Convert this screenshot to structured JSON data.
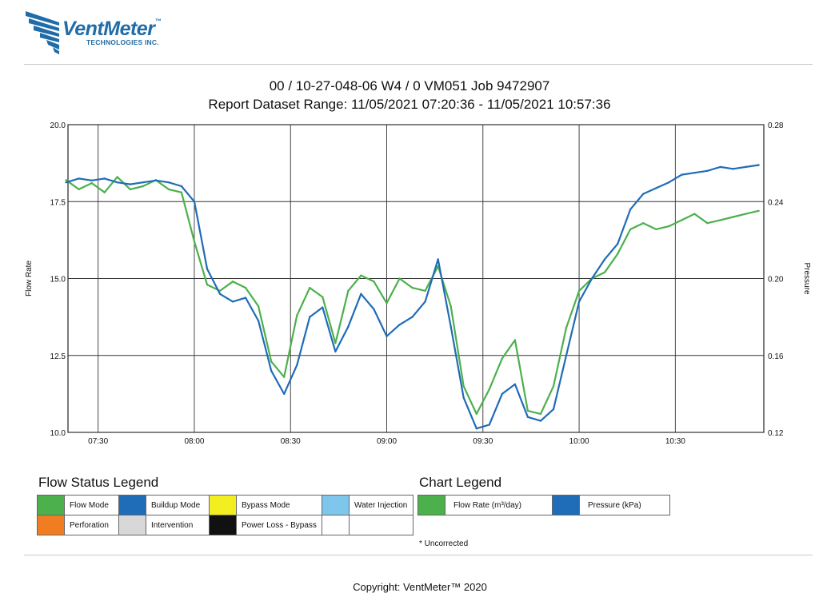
{
  "header": {
    "brand": "VentMeter",
    "brand_tm": "™",
    "brand_sub": "TECHNOLOGIES INC.",
    "title_line1": "00 / 10-27-048-06 W4 / 0 VM051 Job 9472907",
    "title_line2": "Report Dataset Range: 11/05/2021 07:20:36 - 11/05/2021 10:57:36"
  },
  "chart_data": {
    "type": "line",
    "ylabel": "Flow Rate",
    "y2label": "Pressure",
    "ylim": [
      10.0,
      20.0
    ],
    "y2lim": [
      0.12,
      0.28
    ],
    "yticks": [
      "10.0",
      "12.5",
      "15.0",
      "17.5",
      "20.0"
    ],
    "y2ticks": [
      "0.12",
      "0.16",
      "0.20",
      "0.24",
      "0.28"
    ],
    "xticks": [
      "07:30",
      "08:00",
      "08:30",
      "09:00",
      "09:30",
      "10:00",
      "10:30"
    ],
    "xrange": [
      "07:20:36",
      "10:57:36"
    ],
    "grid": true,
    "series": [
      {
        "name": "Flow Rate (m³/day)",
        "axis": "left",
        "color": "#4cb04c",
        "x": [
          "07:20",
          "07:24",
          "07:28",
          "07:32",
          "07:36",
          "07:40",
          "07:44",
          "07:48",
          "07:52",
          "07:56",
          "08:00",
          "08:04",
          "08:08",
          "08:12",
          "08:16",
          "08:20",
          "08:24",
          "08:28",
          "08:32",
          "08:36",
          "08:40",
          "08:44",
          "08:48",
          "08:52",
          "08:56",
          "09:00",
          "09:04",
          "09:08",
          "09:12",
          "09:16",
          "09:20",
          "09:24",
          "09:28",
          "09:32",
          "09:36",
          "09:40",
          "09:44",
          "09:48",
          "09:52",
          "09:56",
          "10:00",
          "10:04",
          "10:08",
          "10:12",
          "10:16",
          "10:20",
          "10:24",
          "10:28",
          "10:32",
          "10:36",
          "10:40",
          "10:44",
          "10:48",
          "10:52",
          "10:56"
        ],
        "values": [
          18.2,
          17.9,
          18.1,
          17.8,
          18.3,
          17.9,
          18.0,
          18.2,
          17.9,
          17.8,
          16.2,
          14.8,
          14.6,
          14.9,
          14.7,
          14.1,
          12.3,
          11.8,
          13.8,
          14.7,
          14.4,
          12.9,
          14.6,
          15.1,
          14.9,
          14.2,
          15.0,
          14.7,
          14.6,
          15.4,
          14.1,
          11.5,
          10.6,
          11.4,
          12.4,
          13.0,
          10.7,
          10.6,
          11.5,
          13.4,
          14.6,
          15.0,
          15.2,
          15.8,
          16.6,
          16.8,
          16.6,
          16.7,
          16.9,
          17.1,
          16.8,
          16.9,
          17.0,
          17.1,
          17.2
        ]
      },
      {
        "name": "Pressure (kPa)",
        "axis": "right",
        "color": "#1f6cb8",
        "x": [
          "07:20",
          "07:24",
          "07:28",
          "07:32",
          "07:36",
          "07:40",
          "07:44",
          "07:48",
          "07:52",
          "07:56",
          "08:00",
          "08:04",
          "08:08",
          "08:12",
          "08:16",
          "08:20",
          "08:24",
          "08:28",
          "08:32",
          "08:36",
          "08:40",
          "08:44",
          "08:48",
          "08:52",
          "08:56",
          "09:00",
          "09:04",
          "09:08",
          "09:12",
          "09:16",
          "09:20",
          "09:24",
          "09:28",
          "09:32",
          "09:36",
          "09:40",
          "09:44",
          "09:48",
          "09:52",
          "09:56",
          "10:00",
          "10:04",
          "10:08",
          "10:12",
          "10:16",
          "10:20",
          "10:24",
          "10:28",
          "10:32",
          "10:36",
          "10:40",
          "10:44",
          "10:48",
          "10:52",
          "10:56"
        ],
        "values": [
          0.25,
          0.252,
          0.251,
          0.252,
          0.25,
          0.249,
          0.25,
          0.251,
          0.25,
          0.248,
          0.24,
          0.205,
          0.192,
          0.188,
          0.19,
          0.178,
          0.152,
          0.14,
          0.155,
          0.18,
          0.185,
          0.162,
          0.175,
          0.192,
          0.184,
          0.17,
          0.176,
          0.18,
          0.188,
          0.21,
          0.175,
          0.138,
          0.122,
          0.124,
          0.14,
          0.145,
          0.128,
          0.126,
          0.132,
          0.16,
          0.188,
          0.2,
          0.21,
          0.218,
          0.236,
          0.244,
          0.247,
          0.25,
          0.254,
          0.255,
          0.256,
          0.258,
          0.257,
          0.258,
          0.259
        ]
      }
    ]
  },
  "flow_status_legend": {
    "title": "Flow Status Legend",
    "items": [
      {
        "label": "Flow Mode",
        "color": "#4cb04c"
      },
      {
        "label": "Buildup Mode",
        "color": "#1f6cb8"
      },
      {
        "label": "Bypass Mode",
        "color": "#f2ee1f"
      },
      {
        "label": "Water Injection",
        "color": "#7ec6ec"
      },
      {
        "label": "Perforation",
        "color": "#f07d22"
      },
      {
        "label": "Intervention",
        "color": "#d8d8d8"
      },
      {
        "label": "Power Loss - Bypass",
        "color": "#111111"
      },
      {
        "label": "",
        "color": "#ffffff"
      }
    ]
  },
  "chart_legend": {
    "title": "Chart Legend",
    "items": [
      {
        "label": "Flow Rate (m³/day)",
        "color": "#4cb04c"
      },
      {
        "label": "Pressure (kPa)",
        "color": "#1f6cb8"
      }
    ]
  },
  "note": "* Uncorrected",
  "footer": {
    "copyright": "Copyright: VentMeter™ 2020"
  }
}
